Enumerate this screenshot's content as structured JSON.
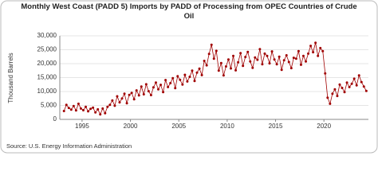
{
  "chart_data": {
    "type": "line",
    "title": "Monthly West Coast (PADD 5) Imports by PADD of Processing from OPEC Countries of Crude Oil",
    "y_label": "Thousand Barrels",
    "source": "Source: U.S. Energy Information Administration",
    "color": "#a00000",
    "markers": true,
    "grid": true,
    "xlim": [
      1992.7,
      2024.6
    ],
    "xticks": [
      1995,
      2000,
      2005,
      2010,
      2015,
      2020
    ],
    "ylim": [
      0,
      30000
    ],
    "yticks": [
      0,
      {
        "value": 5000,
        "label": "5,000"
      },
      {
        "value": 10000,
        "label": "10,000"
      },
      {
        "value": 15000,
        "label": "15,000"
      },
      {
        "value": 20000,
        "label": "20,000"
      },
      {
        "value": 25000,
        "label": "25,000"
      },
      {
        "value": 30000,
        "label": "30,000"
      }
    ],
    "x": [
      1993.13,
      1993.38,
      1993.63,
      1993.88,
      1994.13,
      1994.38,
      1994.63,
      1994.88,
      1995.13,
      1995.38,
      1995.63,
      1995.88,
      1996.13,
      1996.38,
      1996.63,
      1996.88,
      1997.13,
      1997.38,
      1997.63,
      1997.88,
      1998.13,
      1998.38,
      1998.63,
      1998.88,
      1999.13,
      1999.38,
      1999.63,
      1999.88,
      2000.13,
      2000.38,
      2000.63,
      2000.88,
      2001.13,
      2001.38,
      2001.63,
      2001.88,
      2002.13,
      2002.38,
      2002.63,
      2002.88,
      2003.13,
      2003.38,
      2003.63,
      2003.88,
      2004.13,
      2004.38,
      2004.63,
      2004.88,
      2005.13,
      2005.38,
      2005.63,
      2005.88,
      2006.13,
      2006.38,
      2006.63,
      2006.88,
      2007.13,
      2007.38,
      2007.63,
      2007.88,
      2008.13,
      2008.38,
      2008.63,
      2008.88,
      2009.13,
      2009.38,
      2009.63,
      2009.88,
      2010.13,
      2010.38,
      2010.63,
      2010.88,
      2011.13,
      2011.38,
      2011.63,
      2011.88,
      2012.13,
      2012.38,
      2012.63,
      2012.88,
      2013.13,
      2013.38,
      2013.63,
      2013.88,
      2014.13,
      2014.38,
      2014.63,
      2014.88,
      2015.13,
      2015.38,
      2015.63,
      2015.88,
      2016.13,
      2016.38,
      2016.63,
      2016.88,
      2017.13,
      2017.38,
      2017.63,
      2017.88,
      2018.13,
      2018.38,
      2018.63,
      2018.88,
      2019.13,
      2019.38,
      2019.63,
      2019.88,
      2020.13,
      2020.38,
      2020.63,
      2020.88,
      2021.13,
      2021.38,
      2021.63,
      2021.88,
      2022.13,
      2022.38,
      2022.63,
      2022.88,
      2023.13,
      2023.38,
      2023.63,
      2023.88,
      2024.13,
      2024.38
    ],
    "values": [
      3000,
      5200,
      4100,
      3500,
      4800,
      3200,
      5600,
      3900,
      3300,
      4500,
      2900,
      3800,
      4200,
      2500,
      3600,
      1800,
      3900,
      2200,
      4500,
      5200,
      6800,
      4900,
      8300,
      6100,
      7500,
      9200,
      5800,
      8800,
      9500,
      7200,
      10400,
      8600,
      11800,
      9000,
      12600,
      10100,
      8700,
      11500,
      13200,
      10800,
      12400,
      9800,
      14100,
      11600,
      13000,
      14800,
      11200,
      15500,
      14200,
      12500,
      16000,
      13600,
      15300,
      17500,
      13800,
      16800,
      18200,
      15900,
      21000,
      19400,
      23500,
      26800,
      21800,
      24600,
      17500,
      20200,
      15800,
      19000,
      21500,
      18300,
      22800,
      17600,
      20500,
      23800,
      19200,
      22400,
      24200,
      20800,
      18500,
      22200,
      21400,
      25200,
      19800,
      23600,
      22800,
      20100,
      24400,
      21500,
      19800,
      22500,
      17800,
      21200,
      23000,
      20600,
      18400,
      22100,
      21800,
      24500,
      19600,
      22800,
      20800,
      23600,
      26400,
      24100,
      27500,
      22800,
      25600,
      24500,
      16500,
      7800,
      5600,
      9200,
      10800,
      8400,
      12500,
      11300,
      9800,
      13200,
      11600,
      12800,
      14600,
      12200,
      15800,
      13400,
      11800,
      10200
    ]
  }
}
